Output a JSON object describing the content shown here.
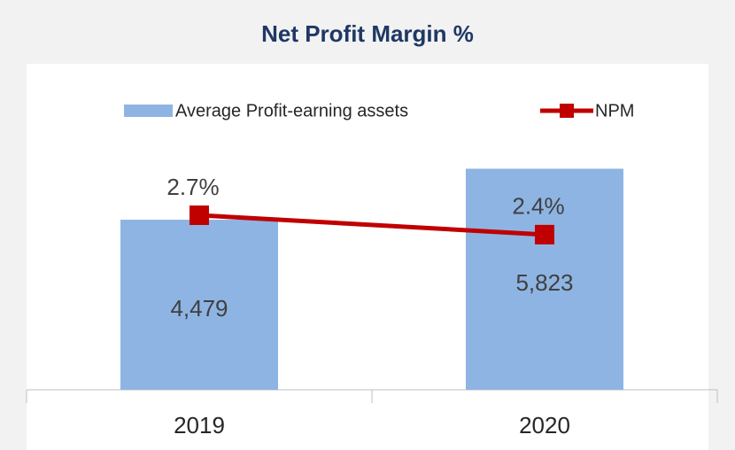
{
  "chart_data": {
    "type": "bar-line",
    "title": "Net Profit Margin %",
    "categories": [
      "2019",
      "2020"
    ],
    "series": [
      {
        "name": "Average Profit-earning assets",
        "type": "bar",
        "color": "#8eb4e3",
        "values": [
          4479,
          5823
        ],
        "value_labels": [
          "4,479",
          "5,823"
        ]
      },
      {
        "name": "NPM",
        "type": "line",
        "axis": "y2",
        "color": "#c00000",
        "values": [
          2.7,
          2.4
        ],
        "value_labels": [
          "2.7%",
          "2.4%"
        ]
      }
    ],
    "ylim": [
      0,
      6300
    ],
    "y2lim": [
      0,
      3.7
    ],
    "legend": "top"
  }
}
